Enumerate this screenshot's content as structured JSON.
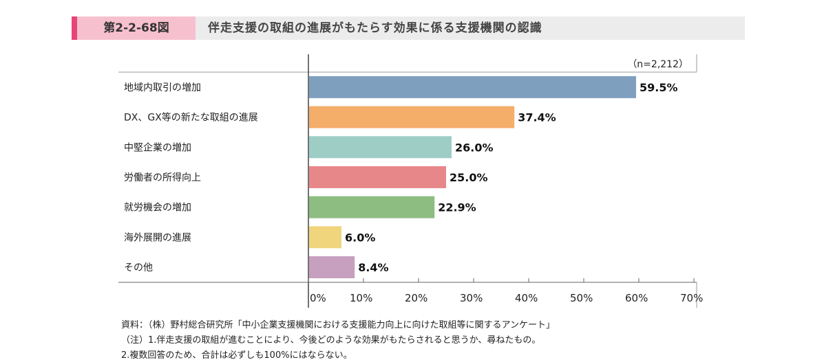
{
  "header": {
    "figure_number": "第2-2-68図",
    "title": "伴走支援の取組の進展がもたらす効果に係る支援機関の認識"
  },
  "chart_data": {
    "type": "bar",
    "orientation": "horizontal",
    "n_label": "（n=2,212）",
    "categories": [
      "地域内取引の増加",
      "DX、GX等の新たな取組の進展",
      "中堅企業の増加",
      "労働者の所得向上",
      "就労機会の増加",
      "海外展開の進展",
      "その他"
    ],
    "values": [
      59.5,
      37.4,
      26.0,
      25.0,
      22.9,
      6.0,
      8.4
    ],
    "value_labels": [
      "59.5%",
      "37.4%",
      "26.0%",
      "25.0%",
      "22.9%",
      "6.0%",
      "8.4%"
    ],
    "colors": [
      "#7f9fbf",
      "#f5ad6a",
      "#9ecdc6",
      "#e8878a",
      "#8dbd80",
      "#f1d57c",
      "#c6a0be"
    ],
    "xlim": [
      0,
      70
    ],
    "xticks": [
      0,
      10,
      20,
      30,
      40,
      50,
      60,
      70
    ],
    "xtick_labels": [
      "0%",
      "10%",
      "20%",
      "30%",
      "40%",
      "50%",
      "60%",
      "70%"
    ],
    "grid": false,
    "legend": "none"
  },
  "notes": {
    "source": "資料：（株）野村総合研究所「中小企業支援機関における支援能力向上に向けた取組等に関するアンケート」",
    "note1": "（注）1.伴走支援の取組が進むことにより、今後どのような効果がもたらされると思うか、尋ねたもの。",
    "note2": "2.複数回答のため、合計は必ずしも100%にはならない。"
  }
}
